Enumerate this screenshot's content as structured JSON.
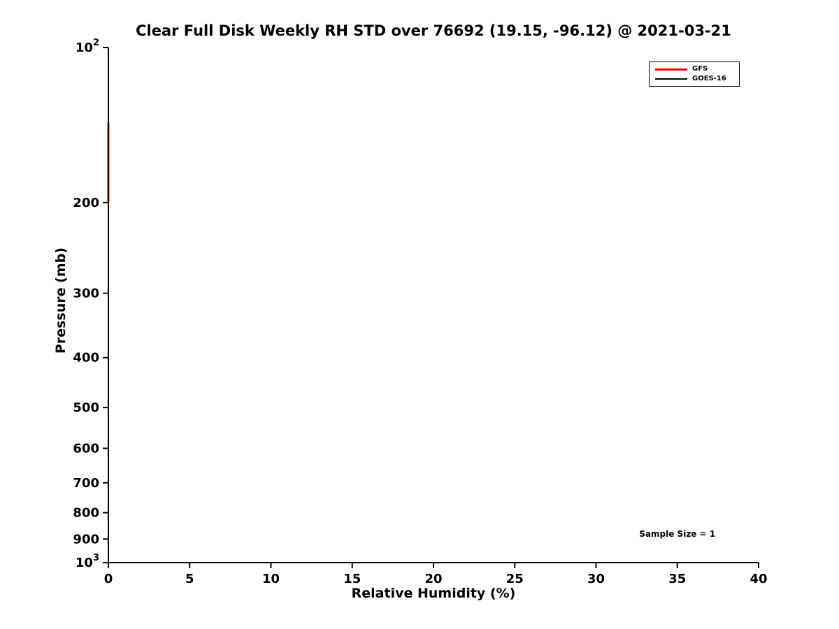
{
  "chart_data": {
    "type": "line",
    "title": "Clear Full Disk Weekly RH STD over 76692 (19.15, -96.12) @ 2021-03-21",
    "xlabel": "Relative Humidity (%)",
    "ylabel": "Pressure (mb)",
    "xlim": [
      0,
      40
    ],
    "x_ticks": [
      0,
      5,
      10,
      15,
      20,
      25,
      30,
      35,
      40
    ],
    "y_scale": "log",
    "y_inverted": true,
    "ylim": [
      100,
      1000
    ],
    "y_ticks": [
      100,
      200,
      300,
      400,
      500,
      600,
      700,
      800,
      900,
      1000
    ],
    "y_tick_labels": [
      "10^2",
      "200",
      "300",
      "400",
      "500",
      "600",
      "700",
      "800",
      "900",
      "10^3"
    ],
    "grid": false,
    "legend_position": "upper right",
    "series": [
      {
        "name": "GFS",
        "color": "#ff0000",
        "line_width": 3,
        "pressure_mb": [
          140,
          200
        ],
        "rh_std_percent": [
          0,
          0
        ]
      },
      {
        "name": "GOES-16",
        "color": "#000000",
        "line_width": 1.8,
        "pressure_mb": [
          140,
          200
        ],
        "rh_std_percent": [
          0,
          0
        ]
      }
    ],
    "annotation": {
      "text": "Sample Size = 1",
      "x": 35,
      "pressure": 880
    }
  },
  "colors": {
    "axis": "#000000",
    "background": "#ffffff",
    "gfs_red": "#ff0000",
    "goes_black": "#000000"
  }
}
